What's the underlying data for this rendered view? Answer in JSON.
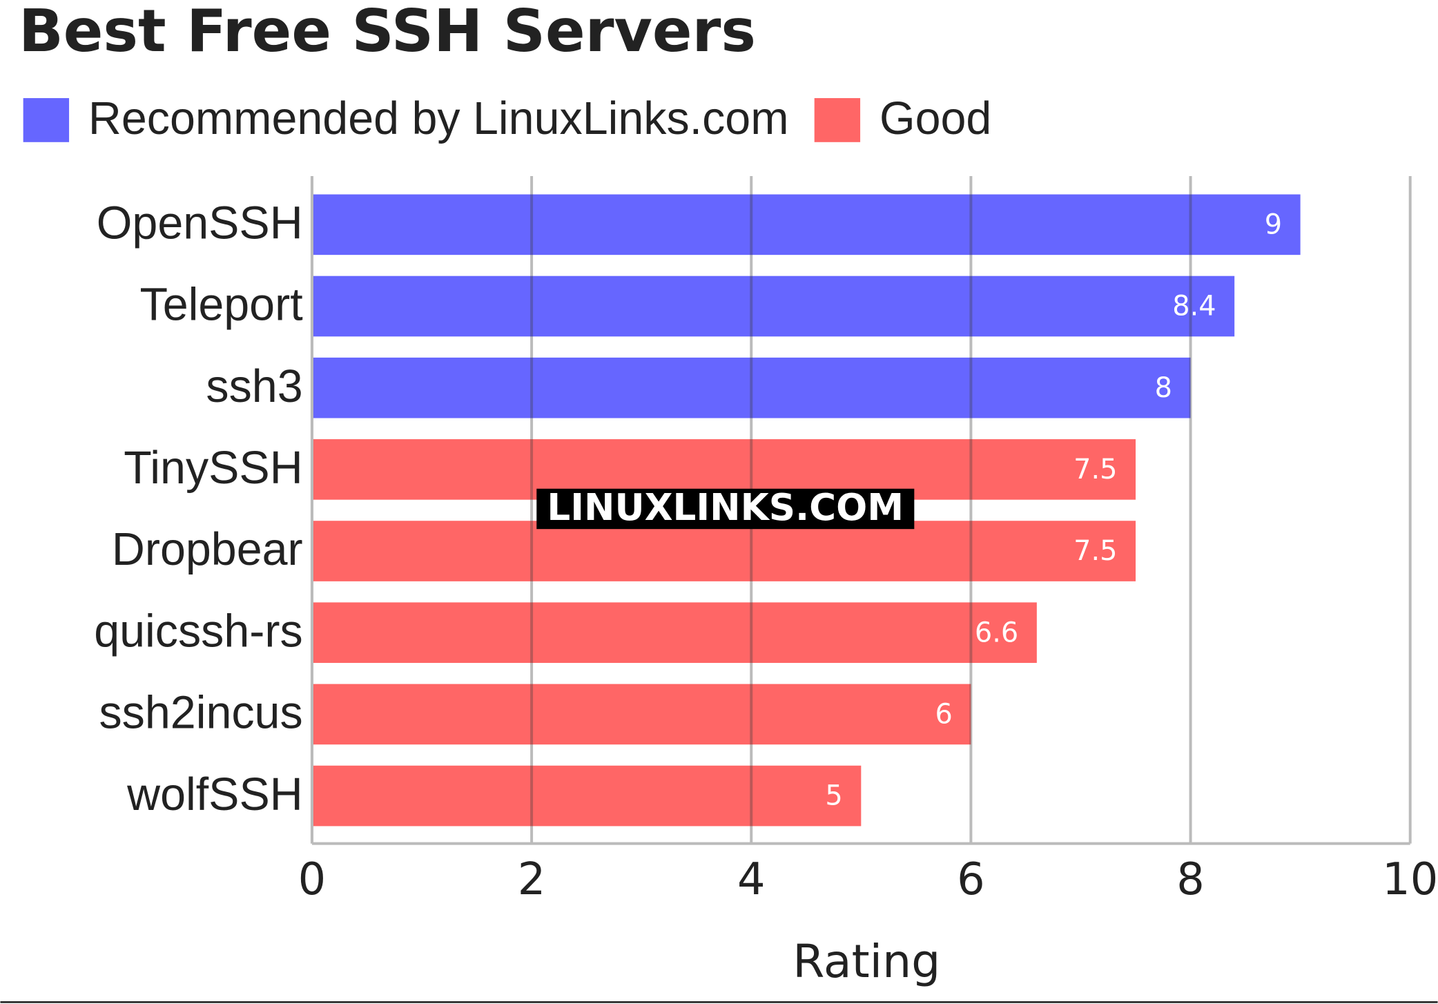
{
  "chart_data": {
    "type": "bar",
    "orientation": "horizontal",
    "title": "Best Free SSH Servers",
    "watermark": "LINUXLINKS.COM",
    "x_label": "Rating",
    "categories": [
      "OpenSSH",
      "Teleport",
      "ssh3",
      "TinySSH",
      "Dropbear",
      "quicssh-rs",
      "ssh2incus",
      "wolfSSH"
    ],
    "series": [
      {
        "name": "Recommended by LinuxLinks.com",
        "color": "#6666ff",
        "values": [
          9,
          8.4,
          8,
          null,
          null,
          null,
          null,
          null
        ]
      },
      {
        "name": "Good",
        "color": "#ff6666",
        "values": [
          null,
          null,
          null,
          7.5,
          7.5,
          6.6,
          6,
          5
        ]
      }
    ],
    "xlim": [
      0,
      10
    ],
    "xticks": [
      0,
      2,
      4,
      6,
      8,
      10
    ],
    "grid": true
  }
}
